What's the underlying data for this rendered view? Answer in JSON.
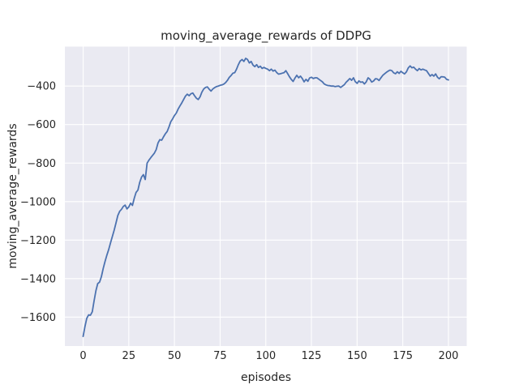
{
  "figure": {
    "background": "#ffffff",
    "axes_background": "#eaeaf2",
    "grid_color": "#ffffff",
    "text_color": "#262626"
  },
  "chart_data": {
    "type": "line",
    "title": "moving_average_rewards of DDPG",
    "xlabel": "episodes",
    "ylabel": "moving_average_rewards",
    "grid": true,
    "legend": false,
    "xlim": [
      -10,
      210
    ],
    "ylim": [
      -1750,
      -195
    ],
    "x_ticks": [
      0,
      25,
      50,
      75,
      100,
      125,
      150,
      175,
      200
    ],
    "x_tick_labels": [
      "0",
      "25",
      "50",
      "75",
      "100",
      "125",
      "150",
      "175",
      "200"
    ],
    "y_ticks": [
      -400,
      -600,
      -800,
      -1000,
      -1200,
      -1400,
      -1600
    ],
    "y_tick_labels": [
      "−400",
      "−600",
      "−800",
      "−1000",
      "−1200",
      "−1400",
      "−1600"
    ],
    "series": [
      {
        "name": "moving_average_rewards",
        "color": "#4c72b0",
        "points": [
          [
            0,
            -1700
          ],
          [
            1,
            -1648
          ],
          [
            2,
            -1606
          ],
          [
            3,
            -1588
          ],
          [
            4,
            -1590
          ],
          [
            5,
            -1572
          ],
          [
            6,
            -1516
          ],
          [
            7,
            -1462
          ],
          [
            8,
            -1426
          ],
          [
            9,
            -1418
          ],
          [
            10,
            -1390
          ],
          [
            11,
            -1347
          ],
          [
            12,
            -1310
          ],
          [
            13,
            -1278
          ],
          [
            14,
            -1248
          ],
          [
            15,
            -1214
          ],
          [
            16,
            -1180
          ],
          [
            17,
            -1148
          ],
          [
            18,
            -1110
          ],
          [
            19,
            -1072
          ],
          [
            20,
            -1050
          ],
          [
            21,
            -1040
          ],
          [
            22,
            -1025
          ],
          [
            23,
            -1018
          ],
          [
            24,
            -1038
          ],
          [
            25,
            -1028
          ],
          [
            26,
            -1008
          ],
          [
            27,
            -1020
          ],
          [
            28,
            -982
          ],
          [
            29,
            -952
          ],
          [
            30,
            -940
          ],
          [
            31,
            -900
          ],
          [
            32,
            -872
          ],
          [
            33,
            -860
          ],
          [
            34,
            -885
          ],
          [
            35,
            -800
          ],
          [
            36,
            -785
          ],
          [
            37,
            -772
          ],
          [
            38,
            -760
          ],
          [
            39,
            -748
          ],
          [
            40,
            -730
          ],
          [
            41,
            -695
          ],
          [
            42,
            -678
          ],
          [
            43,
            -681
          ],
          [
            44,
            -664
          ],
          [
            45,
            -648
          ],
          [
            46,
            -636
          ],
          [
            47,
            -612
          ],
          [
            48,
            -585
          ],
          [
            49,
            -570
          ],
          [
            50,
            -553
          ],
          [
            51,
            -540
          ],
          [
            52,
            -520
          ],
          [
            53,
            -503
          ],
          [
            54,
            -488
          ],
          [
            55,
            -470
          ],
          [
            56,
            -452
          ],
          [
            57,
            -442
          ],
          [
            58,
            -450
          ],
          [
            59,
            -440
          ],
          [
            60,
            -436
          ],
          [
            61,
            -450
          ],
          [
            62,
            -463
          ],
          [
            63,
            -470
          ],
          [
            64,
            -456
          ],
          [
            65,
            -432
          ],
          [
            66,
            -415
          ],
          [
            67,
            -407
          ],
          [
            68,
            -404
          ],
          [
            69,
            -416
          ],
          [
            70,
            -426
          ],
          [
            71,
            -415
          ],
          [
            72,
            -408
          ],
          [
            73,
            -403
          ],
          [
            74,
            -400
          ],
          [
            75,
            -396
          ],
          [
            76,
            -394
          ],
          [
            77,
            -390
          ],
          [
            78,
            -382
          ],
          [
            79,
            -370
          ],
          [
            80,
            -355
          ],
          [
            81,
            -345
          ],
          [
            82,
            -333
          ],
          [
            83,
            -330
          ],
          [
            84,
            -312
          ],
          [
            85,
            -288
          ],
          [
            86,
            -270
          ],
          [
            87,
            -262
          ],
          [
            88,
            -272
          ],
          [
            89,
            -256
          ],
          [
            90,
            -262
          ],
          [
            91,
            -280
          ],
          [
            92,
            -272
          ],
          [
            93,
            -291
          ],
          [
            94,
            -299
          ],
          [
            95,
            -289
          ],
          [
            96,
            -303
          ],
          [
            97,
            -297
          ],
          [
            98,
            -308
          ],
          [
            99,
            -303
          ],
          [
            100,
            -308
          ],
          [
            101,
            -312
          ],
          [
            102,
            -320
          ],
          [
            103,
            -312
          ],
          [
            104,
            -322
          ],
          [
            105,
            -317
          ],
          [
            106,
            -330
          ],
          [
            107,
            -338
          ],
          [
            108,
            -336
          ],
          [
            109,
            -333
          ],
          [
            110,
            -330
          ],
          [
            111,
            -320
          ],
          [
            112,
            -336
          ],
          [
            113,
            -352
          ],
          [
            114,
            -366
          ],
          [
            115,
            -376
          ],
          [
            116,
            -358
          ],
          [
            117,
            -344
          ],
          [
            118,
            -357
          ],
          [
            119,
            -348
          ],
          [
            120,
            -361
          ],
          [
            121,
            -378
          ],
          [
            122,
            -365
          ],
          [
            123,
            -375
          ],
          [
            124,
            -358
          ],
          [
            125,
            -354
          ],
          [
            126,
            -361
          ],
          [
            127,
            -357
          ],
          [
            128,
            -357
          ],
          [
            129,
            -364
          ],
          [
            130,
            -371
          ],
          [
            131,
            -378
          ],
          [
            132,
            -389
          ],
          [
            133,
            -394
          ],
          [
            134,
            -397
          ],
          [
            135,
            -398
          ],
          [
            136,
            -400
          ],
          [
            137,
            -400
          ],
          [
            138,
            -403
          ],
          [
            139,
            -401
          ],
          [
            140,
            -400
          ],
          [
            141,
            -407
          ],
          [
            142,
            -400
          ],
          [
            143,
            -393
          ],
          [
            144,
            -380
          ],
          [
            145,
            -371
          ],
          [
            146,
            -361
          ],
          [
            147,
            -370
          ],
          [
            148,
            -357
          ],
          [
            149,
            -377
          ],
          [
            150,
            -386
          ],
          [
            151,
            -373
          ],
          [
            152,
            -380
          ],
          [
            153,
            -378
          ],
          [
            154,
            -389
          ],
          [
            155,
            -378
          ],
          [
            156,
            -357
          ],
          [
            157,
            -364
          ],
          [
            158,
            -379
          ],
          [
            159,
            -374
          ],
          [
            160,
            -362
          ],
          [
            161,
            -363
          ],
          [
            162,
            -371
          ],
          [
            163,
            -358
          ],
          [
            164,
            -345
          ],
          [
            165,
            -337
          ],
          [
            166,
            -329
          ],
          [
            167,
            -322
          ],
          [
            168,
            -317
          ],
          [
            169,
            -320
          ],
          [
            170,
            -331
          ],
          [
            171,
            -336
          ],
          [
            172,
            -326
          ],
          [
            173,
            -334
          ],
          [
            174,
            -323
          ],
          [
            175,
            -331
          ],
          [
            176,
            -337
          ],
          [
            177,
            -326
          ],
          [
            178,
            -306
          ],
          [
            179,
            -295
          ],
          [
            180,
            -305
          ],
          [
            181,
            -302
          ],
          [
            182,
            -312
          ],
          [
            183,
            -320
          ],
          [
            184,
            -309
          ],
          [
            185,
            -316
          ],
          [
            186,
            -312
          ],
          [
            187,
            -316
          ],
          [
            188,
            -320
          ],
          [
            189,
            -334
          ],
          [
            190,
            -348
          ],
          [
            191,
            -340
          ],
          [
            192,
            -348
          ],
          [
            193,
            -337
          ],
          [
            194,
            -354
          ],
          [
            195,
            -362
          ],
          [
            196,
            -351
          ],
          [
            197,
            -352
          ],
          [
            198,
            -354
          ],
          [
            199,
            -365
          ],
          [
            200,
            -368
          ]
        ]
      }
    ]
  }
}
